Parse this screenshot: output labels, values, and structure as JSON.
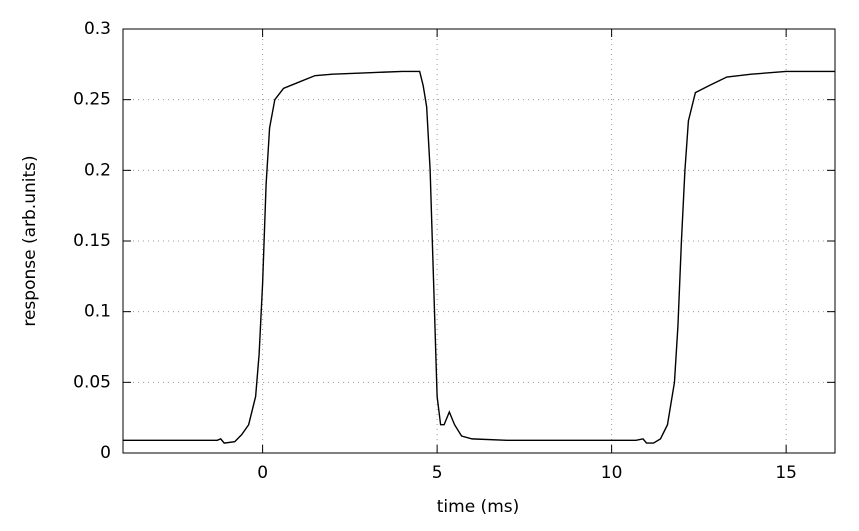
{
  "chart_data": {
    "type": "line",
    "x_label": "time (ms)",
    "y_label": "response (arb.units)",
    "xlim": [
      -4,
      16.4
    ],
    "ylim": [
      0,
      0.3
    ],
    "xticks": [
      0,
      5,
      10,
      15
    ],
    "yticks": [
      0,
      0.05,
      0.1,
      0.15,
      0.2,
      0.25,
      0.3
    ],
    "grid": true,
    "series": [
      {
        "name": "response",
        "color": "#000000",
        "x": [
          -4,
          -3,
          -2,
          -1.3,
          -1.2,
          -1.1,
          -0.8,
          -0.6,
          -0.4,
          -0.2,
          -0.1,
          0,
          0.1,
          0.2,
          0.35,
          0.6,
          1,
          1.5,
          2,
          3,
          4,
          4.5,
          4.6,
          4.7,
          4.8,
          4.9,
          5.0,
          5.1,
          5.2,
          5.35,
          5.5,
          5.7,
          6,
          7,
          8,
          9,
          10,
          10.7,
          10.9,
          11,
          11.2,
          11.4,
          11.6,
          11.8,
          11.9,
          12,
          12.1,
          12.2,
          12.4,
          12.8,
          13.3,
          14,
          15,
          16.4
        ],
        "values": [
          0.009,
          0.009,
          0.009,
          0.009,
          0.01,
          0.007,
          0.008,
          0.013,
          0.02,
          0.04,
          0.07,
          0.12,
          0.19,
          0.23,
          0.25,
          0.258,
          0.262,
          0.267,
          0.268,
          0.269,
          0.27,
          0.27,
          0.26,
          0.245,
          0.2,
          0.12,
          0.04,
          0.02,
          0.02,
          0.029,
          0.02,
          0.012,
          0.01,
          0.009,
          0.009,
          0.009,
          0.009,
          0.009,
          0.01,
          0.007,
          0.007,
          0.01,
          0.02,
          0.05,
          0.09,
          0.15,
          0.2,
          0.235,
          0.255,
          0.26,
          0.266,
          0.268,
          0.27,
          0.27
        ]
      }
    ]
  }
}
